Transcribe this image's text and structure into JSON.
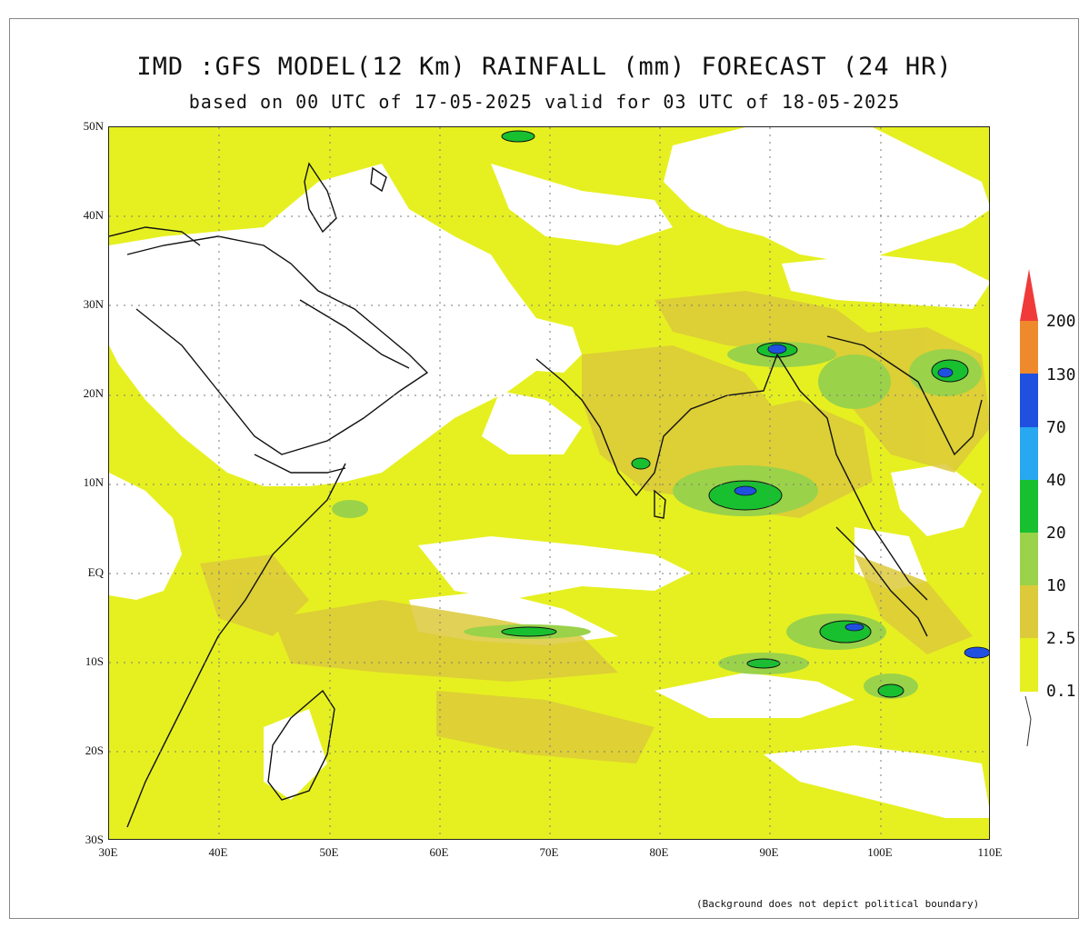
{
  "title": "IMD :GFS MODEL(12 Km) RAINFALL (mm) FORECAST (24 HR)",
  "subtitle": "based on 00 UTC of 17-05-2025 valid for 03 UTC of 18-05-2025",
  "lat_labels": [
    "50N",
    "40N",
    "30N",
    "20N",
    "10N",
    "EQ",
    "10S",
    "20S",
    "30S"
  ],
  "lon_labels": [
    "30E",
    "40E",
    "50E",
    "60E",
    "70E",
    "80E",
    "90E",
    "100E",
    "110E"
  ],
  "colorbar": {
    "labels": [
      "200",
      "130",
      "70",
      "40",
      "20",
      "10",
      "2.5",
      "0.1"
    ],
    "colors": [
      "#f03a3a",
      "#ef8a2c",
      "#2050e0",
      "#28a8f0",
      "#18c030",
      "#9ad24a",
      "#dcca3a",
      "#e6f020"
    ]
  },
  "footnote": "(Background does not depict political boundary)",
  "map": {
    "extent": {
      "lon": [
        30,
        110
      ],
      "lat": [
        -30,
        50
      ]
    },
    "colors": {
      "dry": "#ffffff",
      "light": "#e6f020",
      "moderate": "#dcca3a",
      "heavy": "#9ad24a",
      "very_heavy": "#18c030",
      "intense": "#2050e0",
      "coast": "#111111"
    }
  }
}
